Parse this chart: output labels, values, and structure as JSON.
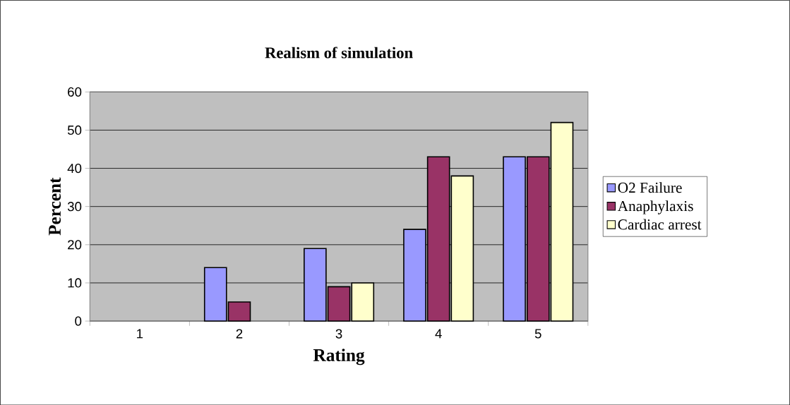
{
  "chart_data": {
    "type": "bar",
    "title": "Realism of simulation",
    "xlabel": "Rating",
    "ylabel": "Percent",
    "categories": [
      "1",
      "2",
      "3",
      "4",
      "5"
    ],
    "series": [
      {
        "name": "O2 Failure",
        "color": "#9999ff",
        "values": [
          null,
          14,
          19,
          24,
          43
        ]
      },
      {
        "name": "Anaphylaxis",
        "color": "#993366",
        "values": [
          null,
          5,
          9,
          43,
          43
        ]
      },
      {
        "name": "Cardiac arrest",
        "color": "#ffffcc",
        "values": [
          null,
          null,
          10,
          38,
          52
        ]
      }
    ],
    "ylim": [
      0,
      60
    ],
    "yticks": [
      0,
      10,
      20,
      30,
      40,
      50,
      60
    ],
    "grid": "y",
    "legend": "right"
  }
}
